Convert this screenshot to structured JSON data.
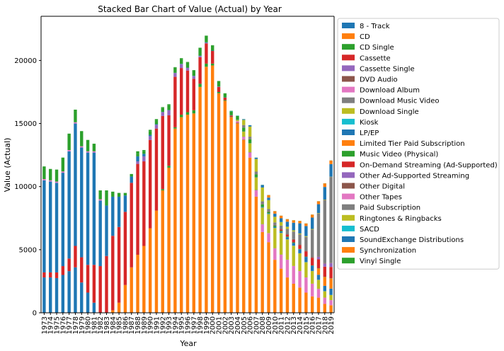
{
  "chart_data": {
    "type": "bar",
    "stacked": true,
    "title": "Stacked Bar Chart of Value (Actual) by Year",
    "xlabel": "Year",
    "ylabel": "Value (Actual)",
    "ylim": [
      0,
      23500
    ],
    "yticks": [
      0,
      5000,
      10000,
      15000,
      20000
    ],
    "grid": false,
    "legend_position": "right, outside plot",
    "categories": [
      "1973",
      "1974",
      "1975",
      "1976",
      "1977",
      "1978",
      "1979",
      "1980",
      "1981",
      "1982",
      "1983",
      "1984",
      "1985",
      "1986",
      "1987",
      "1988",
      "1989",
      "1990",
      "1991",
      "1992",
      "1993",
      "1994",
      "1995",
      "1996",
      "1997",
      "1998",
      "1999",
      "2000",
      "2001",
      "2002",
      "2003",
      "2004",
      "2005",
      "2006",
      "2007",
      "2008",
      "2009",
      "2010",
      "2011",
      "2012",
      "2013",
      "2014",
      "2015",
      "2016",
      "2017",
      "2018",
      "2019"
    ],
    "series": [
      {
        "name": "8 - Track",
        "color": "#1f77b4",
        "values": [
          2800,
          2800,
          2750,
          3000,
          3300,
          3600,
          2400,
          1600,
          800,
          0,
          0,
          0,
          0,
          0,
          0,
          0,
          0,
          0,
          0,
          0,
          0,
          0,
          0,
          0,
          0,
          0,
          0,
          0,
          0,
          0,
          0,
          0,
          0,
          0,
          0,
          0,
          0,
          0,
          0,
          0,
          0,
          0,
          0,
          0,
          0,
          0,
          0
        ]
      },
      {
        "name": "CD",
        "color": "#ff7f0e",
        "values": [
          0,
          0,
          0,
          0,
          0,
          0,
          0,
          0,
          0,
          0,
          0,
          200,
          800,
          2200,
          3600,
          4600,
          5300,
          6700,
          8100,
          9700,
          11500,
          14600,
          15500,
          15700,
          15800,
          17900,
          19500,
          19600,
          17400,
          16800,
          15500,
          15000,
          13700,
          12300,
          9200,
          6400,
          5600,
          4200,
          3500,
          2800,
          2300,
          2000,
          1600,
          1300,
          1200,
          700,
          600
        ]
      },
      {
        "name": "CD Single",
        "color": "#2ca02c",
        "values": [
          0,
          0,
          0,
          0,
          0,
          0,
          0,
          0,
          0,
          0,
          0,
          0,
          0,
          0,
          0,
          0,
          0,
          0,
          0,
          100,
          150,
          100,
          200,
          200,
          250,
          250,
          250,
          150,
          100,
          50,
          30,
          20,
          10,
          0,
          0,
          0,
          0,
          0,
          0,
          0,
          0,
          0,
          0,
          0,
          0,
          0,
          0
        ]
      },
      {
        "name": "Cassette",
        "color": "#d62728",
        "values": [
          400,
          400,
          450,
          700,
          1000,
          1700,
          2000,
          2200,
          3000,
          3700,
          4500,
          5900,
          6000,
          5800,
          6700,
          7200,
          6700,
          7000,
          6500,
          5800,
          4000,
          4000,
          3700,
          3300,
          2500,
          2100,
          1600,
          1000,
          400,
          200,
          100,
          50,
          20,
          0,
          0,
          0,
          0,
          0,
          0,
          0,
          0,
          0,
          0,
          0,
          0,
          0,
          0
        ]
      },
      {
        "name": "Cassette Single",
        "color": "#9467bd",
        "values": [
          0,
          0,
          0,
          0,
          0,
          0,
          0,
          0,
          0,
          0,
          0,
          0,
          0,
          0,
          0,
          200,
          400,
          300,
          300,
          300,
          400,
          300,
          300,
          200,
          200,
          100,
          50,
          0,
          0,
          0,
          0,
          0,
          0,
          0,
          0,
          0,
          0,
          0,
          0,
          0,
          0,
          0,
          0,
          0,
          0,
          0,
          0
        ]
      },
      {
        "name": "DVD Audio",
        "color": "#8c564b",
        "values": [
          0,
          0,
          0,
          0,
          0,
          0,
          0,
          0,
          0,
          0,
          0,
          0,
          0,
          0,
          0,
          0,
          0,
          0,
          0,
          0,
          0,
          0,
          0,
          0,
          0,
          0,
          0,
          0,
          10,
          10,
          10,
          10,
          10,
          0,
          0,
          0,
          0,
          0,
          0,
          0,
          0,
          0,
          0,
          0,
          0,
          0,
          0
        ]
      },
      {
        "name": "Download Album",
        "color": "#e377c2",
        "values": [
          0,
          0,
          0,
          0,
          0,
          0,
          0,
          0,
          0,
          0,
          0,
          0,
          0,
          0,
          0,
          0,
          0,
          0,
          0,
          0,
          0,
          0,
          0,
          0,
          0,
          0,
          0,
          0,
          0,
          0,
          0,
          100,
          200,
          400,
          500,
          600,
          700,
          900,
          1100,
          1400,
          1400,
          1300,
          1200,
          1000,
          700,
          500,
          400
        ]
      },
      {
        "name": "Download Music Video",
        "color": "#7f7f7f",
        "values": [
          0,
          0,
          0,
          0,
          0,
          0,
          0,
          0,
          0,
          0,
          0,
          0,
          0,
          0,
          0,
          0,
          0,
          0,
          0,
          0,
          0,
          0,
          0,
          0,
          0,
          0,
          0,
          0,
          0,
          0,
          0,
          0,
          20,
          30,
          40,
          30,
          20,
          20,
          20,
          10,
          10,
          10,
          5,
          5,
          5,
          5,
          5
        ]
      },
      {
        "name": "Download Single",
        "color": "#bcbd22",
        "values": [
          0,
          0,
          0,
          0,
          0,
          0,
          0,
          0,
          0,
          0,
          0,
          0,
          0,
          0,
          0,
          0,
          0,
          0,
          0,
          0,
          0,
          0,
          0,
          0,
          0,
          0,
          0,
          0,
          0,
          0,
          0,
          100,
          400,
          700,
          1000,
          1300,
          1500,
          1600,
          1700,
          1600,
          1600,
          1400,
          1200,
          1000,
          700,
          500,
          400
        ]
      },
      {
        "name": "Kiosk",
        "color": "#17becf",
        "values": [
          0,
          0,
          0,
          0,
          0,
          0,
          0,
          0,
          0,
          0,
          0,
          0,
          0,
          0,
          0,
          0,
          0,
          0,
          0,
          0,
          0,
          0,
          0,
          0,
          0,
          0,
          0,
          0,
          0,
          0,
          0,
          0,
          0,
          0,
          0,
          10,
          10,
          10,
          10,
          10,
          10,
          10,
          10,
          10,
          10,
          10,
          10
        ]
      },
      {
        "name": "LP/EP",
        "color": "#1f77b4",
        "values": [
          7300,
          7200,
          7100,
          7400,
          8500,
          9700,
          8700,
          8900,
          8900,
          5200,
          4000,
          3100,
          2400,
          1300,
          500,
          400,
          200,
          100,
          50,
          20,
          20,
          20,
          30,
          30,
          30,
          30,
          40,
          30,
          30,
          20,
          20,
          20,
          20,
          20,
          30,
          60,
          60,
          80,
          110,
          160,
          210,
          310,
          410,
          420,
          400,
          420,
          500
        ]
      },
      {
        "name": "Limited Tier Paid Subscription",
        "color": "#ff7f0e",
        "values": [
          0,
          0,
          0,
          0,
          0,
          0,
          0,
          0,
          0,
          0,
          0,
          0,
          0,
          0,
          0,
          0,
          0,
          0,
          0,
          0,
          0,
          0,
          0,
          0,
          0,
          0,
          0,
          0,
          0,
          0,
          0,
          0,
          0,
          0,
          0,
          0,
          0,
          0,
          0,
          0,
          0,
          0,
          0,
          0,
          500,
          700,
          800
        ]
      },
      {
        "name": "Music Video (Physical)",
        "color": "#2ca02c",
        "values": [
          0,
          0,
          0,
          0,
          0,
          0,
          0,
          0,
          0,
          0,
          0,
          0,
          0,
          0,
          0,
          200,
          200,
          300,
          300,
          300,
          400,
          400,
          400,
          400,
          400,
          600,
          500,
          400,
          400,
          300,
          300,
          300,
          300,
          300,
          200,
          200,
          100,
          100,
          60,
          60,
          50,
          30,
          30,
          20,
          20,
          20,
          20
        ]
      },
      {
        "name": "On-Demand Streaming (Ad-Supported)",
        "color": "#d62728",
        "values": [
          0,
          0,
          0,
          0,
          0,
          0,
          0,
          0,
          0,
          0,
          0,
          0,
          0,
          0,
          0,
          0,
          0,
          0,
          0,
          0,
          0,
          0,
          0,
          0,
          0,
          0,
          0,
          0,
          0,
          0,
          0,
          0,
          0,
          0,
          0,
          0,
          0,
          0,
          100,
          150,
          200,
          300,
          400,
          600,
          700,
          800,
          900
        ]
      },
      {
        "name": "Other Ad-Supported Streaming",
        "color": "#9467bd",
        "values": [
          0,
          0,
          0,
          0,
          0,
          0,
          0,
          0,
          0,
          0,
          0,
          0,
          0,
          0,
          0,
          0,
          0,
          0,
          0,
          0,
          0,
          0,
          0,
          0,
          0,
          0,
          0,
          0,
          0,
          0,
          0,
          0,
          0,
          0,
          0,
          0,
          0,
          0,
          0,
          0,
          0,
          0,
          0,
          0,
          200,
          250,
          300
        ]
      },
      {
        "name": "Other Digital",
        "color": "#8c564b",
        "values": [
          0,
          0,
          0,
          0,
          0,
          0,
          0,
          0,
          0,
          0,
          0,
          0,
          0,
          0,
          0,
          0,
          0,
          0,
          0,
          0,
          0,
          0,
          0,
          0,
          0,
          0,
          0,
          0,
          0,
          0,
          0,
          0,
          0,
          10,
          20,
          30,
          40,
          50,
          60,
          60,
          60,
          60,
          60,
          50,
          40,
          40,
          30
        ]
      },
      {
        "name": "Other Tapes",
        "color": "#e377c2",
        "values": [
          100,
          100,
          100,
          100,
          100,
          100,
          100,
          100,
          100,
          100,
          0,
          0,
          0,
          0,
          0,
          0,
          0,
          0,
          0,
          0,
          0,
          0,
          0,
          0,
          0,
          0,
          0,
          0,
          0,
          0,
          0,
          0,
          0,
          0,
          0,
          0,
          0,
          0,
          0,
          0,
          0,
          0,
          0,
          0,
          0,
          0,
          0
        ]
      },
      {
        "name": "Paid Subscription",
        "color": "#7f7f7f",
        "values": [
          0,
          0,
          0,
          0,
          0,
          0,
          0,
          0,
          0,
          0,
          0,
          0,
          0,
          0,
          0,
          0,
          0,
          0,
          0,
          0,
          0,
          0,
          0,
          0,
          0,
          0,
          0,
          0,
          0,
          0,
          0,
          0,
          200,
          200,
          200,
          200,
          200,
          200,
          250,
          400,
          600,
          800,
          1100,
          2200,
          3400,
          5000,
          6800
        ]
      },
      {
        "name": "Ringtones & Ringbacks",
        "color": "#bcbd22",
        "values": [
          0,
          0,
          0,
          0,
          0,
          0,
          0,
          0,
          0,
          0,
          0,
          0,
          0,
          0,
          0,
          0,
          0,
          0,
          0,
          0,
          0,
          0,
          0,
          0,
          0,
          0,
          0,
          0,
          0,
          0,
          0,
          0,
          400,
          800,
          1000,
          1100,
          700,
          450,
          280,
          170,
          100,
          70,
          60,
          40,
          30,
          30,
          20
        ]
      },
      {
        "name": "SACD",
        "color": "#17becf",
        "values": [
          0,
          0,
          0,
          0,
          0,
          0,
          0,
          0,
          0,
          0,
          0,
          0,
          0,
          0,
          0,
          0,
          0,
          0,
          0,
          0,
          0,
          0,
          0,
          0,
          0,
          0,
          0,
          0,
          0,
          0,
          30,
          20,
          10,
          0,
          0,
          0,
          0,
          0,
          0,
          0,
          0,
          0,
          0,
          0,
          0,
          0,
          0
        ]
      },
      {
        "name": "SoundExchange Distributions",
        "color": "#1f77b4",
        "values": [
          0,
          0,
          0,
          0,
          0,
          0,
          0,
          0,
          0,
          0,
          0,
          0,
          0,
          0,
          0,
          0,
          0,
          0,
          0,
          0,
          0,
          0,
          0,
          0,
          0,
          0,
          0,
          0,
          0,
          0,
          0,
          0,
          50,
          100,
          100,
          200,
          200,
          250,
          300,
          400,
          600,
          800,
          800,
          900,
          700,
          1000,
          1000
        ]
      },
      {
        "name": "Synchronization",
        "color": "#ff7f0e",
        "values": [
          0,
          0,
          0,
          0,
          0,
          0,
          0,
          0,
          0,
          0,
          0,
          0,
          0,
          0,
          0,
          0,
          0,
          0,
          0,
          0,
          0,
          0,
          0,
          0,
          0,
          0,
          0,
          0,
          0,
          0,
          0,
          0,
          0,
          0,
          0,
          0,
          200,
          190,
          200,
          200,
          190,
          190,
          200,
          230,
          230,
          280,
          280
        ]
      },
      {
        "name": "Vinyl Single",
        "color": "#2ca02c",
        "values": [
          1000,
          900,
          950,
          1100,
          1300,
          1000,
          1200,
          900,
          600,
          700,
          1200,
          400,
          300,
          200,
          200,
          200,
          100,
          100,
          100,
          80,
          60,
          50,
          50,
          50,
          50,
          30,
          30,
          30,
          30,
          20,
          20,
          10,
          10,
          10,
          10,
          10,
          10,
          10,
          10,
          10,
          10,
          10,
          10,
          10,
          10,
          10,
          10
        ]
      }
    ]
  }
}
